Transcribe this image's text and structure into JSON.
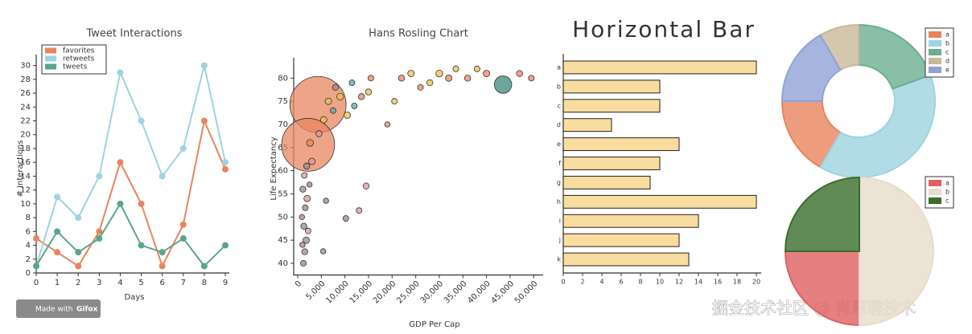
{
  "chart_data": [
    {
      "type": "line",
      "title": "Tweet Interactions",
      "x_label": "Days",
      "y_label": "# Interactions",
      "x": [
        0,
        1,
        2,
        3,
        4,
        5,
        6,
        7,
        8,
        9
      ],
      "series": [
        {
          "name": "favorites",
          "color": "#e8855e",
          "values": [
            5,
            3,
            1,
            6,
            16,
            10,
            1,
            7,
            22,
            15
          ]
        },
        {
          "name": "retweets",
          "color": "#9ed3e0",
          "values": [
            1,
            11,
            8,
            14,
            29,
            22,
            14,
            18,
            30,
            16
          ]
        },
        {
          "name": "tweets",
          "color": "#5aa58a",
          "values": [
            1,
            6,
            3,
            5,
            10,
            4,
            3,
            5,
            1,
            4
          ]
        }
      ],
      "xlim": [
        0,
        9
      ],
      "xticks": [
        0,
        1,
        2,
        3,
        4,
        5,
        6,
        7,
        8,
        9
      ],
      "ylim": [
        0,
        31
      ],
      "yticks": [
        0,
        2,
        4,
        6,
        8,
        10,
        12,
        14,
        16,
        18,
        20,
        22,
        24,
        26,
        28,
        30
      ],
      "legend": "upper-left"
    },
    {
      "type": "scatter",
      "title": "Hans Rosling Chart",
      "x_label": "GDP Per Cap",
      "y_label": "Life Expectancy",
      "x": [
        4300,
        2200,
        43500,
        1200,
        1500,
        1000,
        1800,
        2200,
        1300,
        900,
        1600,
        2000,
        1100,
        2500,
        1400,
        1900,
        3000,
        2600,
        4500,
        5500,
        7500,
        9000,
        8000,
        10500,
        12000,
        13500,
        6500,
        11500,
        15000,
        15500,
        19000,
        20500,
        22000,
        24000,
        26000,
        28000,
        30000,
        32000,
        33500,
        36000,
        38000,
        40000,
        47000,
        49500,
        14500,
        10200,
        13000,
        5400,
        6000
      ],
      "values": [
        74.3,
        65.6,
        78.6,
        40,
        42.5,
        44,
        45,
        47,
        48,
        50,
        52,
        54,
        56,
        57,
        59,
        61,
        62,
        66,
        68,
        71,
        73,
        76,
        78,
        72,
        74,
        76,
        75,
        79,
        77,
        80,
        70,
        75,
        80,
        81,
        78,
        79,
        81,
        80,
        82,
        80,
        82,
        81,
        81,
        80,
        56.7,
        49.7,
        51.4,
        42.6,
        53.5
      ],
      "sizes": [
        1350,
        1200,
        130,
        14,
        16,
        12,
        18,
        14,
        16,
        12,
        14,
        18,
        16,
        12,
        14,
        16,
        18,
        20,
        16,
        18,
        14,
        20,
        16,
        18,
        14,
        16,
        18,
        14,
        16,
        14,
        12,
        14,
        16,
        18,
        14,
        16,
        20,
        18,
        14,
        16,
        14,
        18,
        16,
        14,
        16,
        14,
        14,
        12,
        12
      ],
      "colors": [
        "#e8855e",
        "#e8855e",
        "#3a8a7a",
        "#9a8a8a",
        "#9a8a8a",
        "#b08080",
        "#9a8a8a",
        "#d99a9a",
        "#9a8a8a",
        "#b08080",
        "#9a8a8a",
        "#d99a9a",
        "#9a8a8a",
        "#b08080",
        "#d99a9a",
        "#9a8a8a",
        "#d99a9a",
        "#e8855e",
        "#d99a9a",
        "#e8c04a",
        "#5aa5a0",
        "#e8c04a",
        "#9a8a8a",
        "#e8c04a",
        "#5aa5a0",
        "#e8855e",
        "#e8c04a",
        "#5aa5a0",
        "#e8c04a",
        "#e8855e",
        "#e8855e",
        "#e8c04a",
        "#e8855e",
        "#e8c04a",
        "#e8855e",
        "#e8c04a",
        "#e8c04a",
        "#e8855e",
        "#e8c04a",
        "#e8855e",
        "#e8c04a",
        "#e8855e",
        "#e8855e",
        "#e8855e",
        "#d99a9a",
        "#b08080",
        "#d99a9a",
        "#9a8a8a",
        "#9a8a8a"
      ],
      "xlim": [
        0,
        52000
      ],
      "xticks": [
        0,
        {
          "value": 5000,
          "label": "5,000"
        },
        {
          "value": 10000,
          "label": "10,000"
        },
        {
          "value": 15000,
          "label": "15,000"
        },
        {
          "value": 20000,
          "label": "20,000"
        },
        {
          "value": 25000,
          "label": "25,000"
        },
        {
          "value": 30000,
          "label": "30,000"
        },
        {
          "value": 35000,
          "label": "35,000"
        },
        {
          "value": 40000,
          "label": "40,000"
        },
        {
          "value": 45000,
          "label": "45,000"
        },
        {
          "value": 50000,
          "label": "50,000"
        }
      ],
      "ylim": [
        38,
        83
      ],
      "yticks": [
        40,
        45,
        50,
        55,
        60,
        65,
        70,
        75,
        80
      ]
    },
    {
      "type": "hbar",
      "title": "Horizontal Bar",
      "categories": [
        "a",
        "b",
        "c",
        "d",
        "e",
        "f",
        "g",
        "h",
        "i",
        "j",
        "k"
      ],
      "values": [
        20,
        10,
        10,
        5,
        12,
        10,
        9,
        20,
        14,
        12,
        13
      ],
      "color": "#f2c14e",
      "xlim": [
        0,
        20.5
      ],
      "xticks": [
        0,
        2,
        4,
        6,
        8,
        10,
        12,
        14,
        16,
        18,
        20
      ]
    },
    {
      "type": "donut",
      "categories": [
        "a",
        "b",
        "c",
        "d",
        "e"
      ],
      "values": [
        60,
        140,
        70,
        30,
        60
      ],
      "colors": [
        "#e8855e",
        "#9ed3e0",
        "#6aaf8e",
        "#c9b99a",
        "#8fa3d6"
      ]
    },
    {
      "type": "pie",
      "categories": [
        "a",
        "b",
        "c"
      ],
      "values": [
        25,
        50,
        25
      ],
      "colors": [
        "#e06060",
        "#e8dccb",
        "#3a6e2a"
      ]
    }
  ],
  "badge": {
    "prefix": "Made with",
    "brand": "Gifox"
  },
  "watermark": "掘金技术社区 @ 肖恩聊技术"
}
